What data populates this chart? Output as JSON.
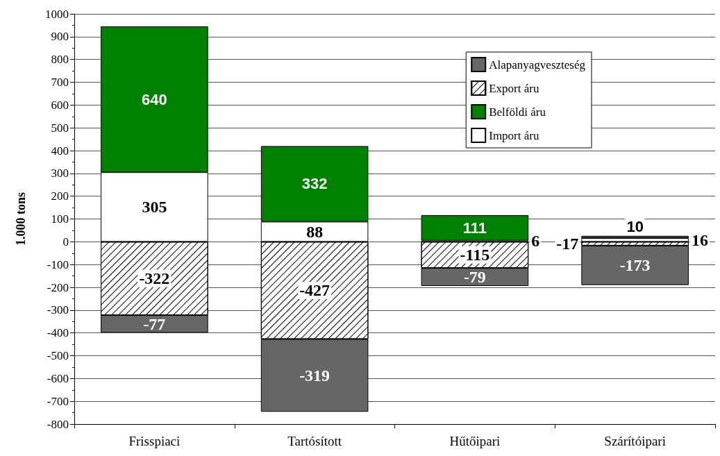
{
  "chart_data": {
    "type": "bar",
    "stacked": true,
    "ylabel": "1.000 tons",
    "categories": [
      "Frisspiaci",
      "Tartósított",
      "Hűtőipari",
      "Szárítóipari"
    ],
    "series": [
      {
        "name": "Import áru",
        "color": "#ffffff",
        "values": [
          305,
          88,
          6,
          16
        ]
      },
      {
        "name": "Belföldi áru",
        "color": "#008000",
        "values": [
          640,
          332,
          111,
          10
        ]
      },
      {
        "name": "Export áru",
        "color": "#ffffff",
        "values": [
          -322,
          -427,
          -115,
          -17
        ]
      },
      {
        "name": "Alapanyagveszteség",
        "color": "#666666",
        "values": [
          -77,
          -319,
          -79,
          -173
        ]
      }
    ],
    "ylim": [
      -800,
      1000
    ],
    "yticks": [
      -800,
      -700,
      -600,
      -500,
      -400,
      -300,
      -200,
      -100,
      0,
      100,
      200,
      300,
      400,
      500,
      600,
      700,
      800,
      900,
      1000
    ],
    "grid": "y",
    "legend": "top right",
    "data_labels": true
  }
}
